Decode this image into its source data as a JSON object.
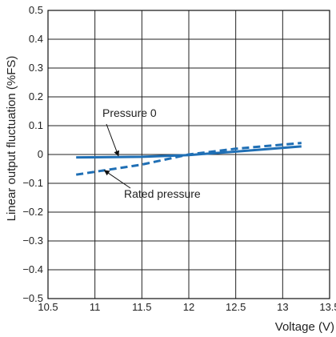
{
  "chart_data": {
    "type": "line",
    "title": "",
    "xlabel": "Voltage (V)",
    "ylabel": "Linear output fluctuation (%FS)",
    "xlim": [
      10.5,
      13.5
    ],
    "ylim": [
      -0.5,
      0.5
    ],
    "x_ticks": [
      10.5,
      11,
      11.5,
      12,
      12.5,
      13,
      13.5
    ],
    "x_tick_labels": [
      "10.5",
      "11",
      "11.5",
      "12",
      "12.5",
      "13",
      "13.5"
    ],
    "y_ticks": [
      0.5,
      0.4,
      0.3,
      0.2,
      0.1,
      0,
      -0.1,
      -0.2,
      -0.3,
      -0.4,
      -0.5
    ],
    "y_tick_labels": [
      "0.5",
      "0.4",
      "0.3",
      "0.2",
      "0.1",
      "0",
      "−0.1",
      "−0.2",
      "−0.3",
      "−0.4",
      "−0.5"
    ],
    "grid": true,
    "colors": {
      "series": "#1f6fb5",
      "grid": "#222222"
    },
    "series": [
      {
        "name": "Pressure 0",
        "style": "solid",
        "x": [
          10.8,
          11.5,
          12,
          12.5,
          13.2
        ],
        "y": [
          -0.01,
          -0.008,
          -0.002,
          0.01,
          0.028
        ]
      },
      {
        "name": "Rated pressure",
        "style": "dashed",
        "x": [
          10.8,
          11.5,
          12,
          12.5,
          13.2
        ],
        "y": [
          -0.07,
          -0.035,
          0,
          0.02,
          0.04
        ]
      }
    ],
    "annotations": [
      {
        "text": "Pressure 0",
        "series": "Pressure 0",
        "points_to": [
          11.25,
          -0.005
        ]
      },
      {
        "text": "Rated pressure",
        "series": "Rated pressure",
        "points_to": [
          11.1,
          -0.055
        ]
      }
    ]
  }
}
